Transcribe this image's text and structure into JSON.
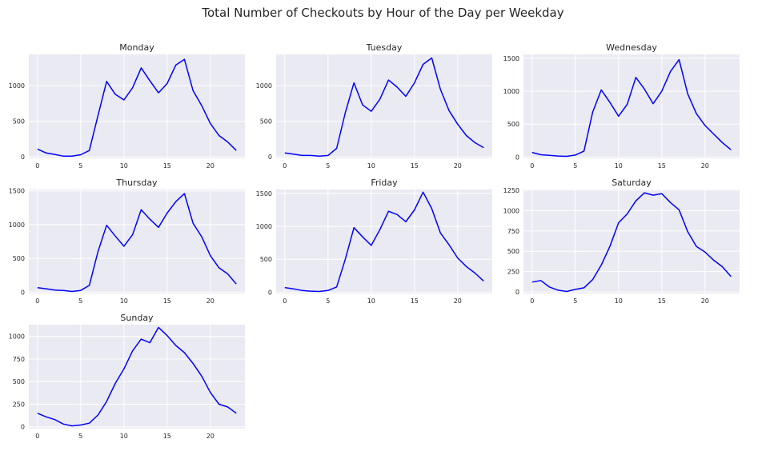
{
  "title": "Total Number of Checkouts by Hour of the Day per Weekday",
  "colors": {
    "line": "#0000ff",
    "panel_bg": "#eaeaf2",
    "grid": "#ffffff"
  },
  "chart_data": [
    {
      "type": "line",
      "title": "Monday",
      "xlabel": "",
      "ylabel": "",
      "grid": true,
      "xlim": [
        -1,
        24
      ],
      "ylim": [
        -20,
        1440
      ],
      "xticks": [
        0,
        5,
        10,
        15,
        20
      ],
      "yticks": [
        0,
        500,
        1000
      ],
      "x": [
        0,
        1,
        2,
        3,
        4,
        5,
        6,
        7,
        8,
        9,
        10,
        11,
        12,
        13,
        14,
        15,
        16,
        17,
        18,
        19,
        20,
        21,
        22,
        23
      ],
      "values": [
        110,
        55,
        35,
        10,
        10,
        30,
        90,
        580,
        1060,
        880,
        800,
        970,
        1250,
        1070,
        900,
        1030,
        1290,
        1370,
        930,
        720,
        470,
        300,
        210,
        90
      ]
    },
    {
      "type": "line",
      "title": "Tuesday",
      "xlabel": "",
      "ylabel": "",
      "grid": true,
      "xlim": [
        -1,
        24
      ],
      "ylim": [
        -20,
        1440
      ],
      "xticks": [
        0,
        5,
        10,
        15,
        20
      ],
      "yticks": [
        0,
        500,
        1000
      ],
      "x": [
        0,
        1,
        2,
        3,
        4,
        5,
        6,
        7,
        8,
        9,
        10,
        11,
        12,
        13,
        14,
        15,
        16,
        17,
        18,
        19,
        20,
        21,
        22,
        23
      ],
      "values": [
        55,
        40,
        20,
        20,
        10,
        20,
        120,
        620,
        1040,
        730,
        640,
        810,
        1080,
        980,
        850,
        1040,
        1300,
        1390,
        950,
        650,
        460,
        300,
        200,
        130
      ]
    },
    {
      "type": "line",
      "title": "Wednesday",
      "xlabel": "",
      "ylabel": "",
      "grid": true,
      "xlim": [
        -1,
        24
      ],
      "ylim": [
        -20,
        1560
      ],
      "xticks": [
        0,
        5,
        10,
        15,
        20
      ],
      "yticks": [
        0,
        500,
        1000,
        1500
      ],
      "x": [
        0,
        1,
        2,
        3,
        4,
        5,
        6,
        7,
        8,
        9,
        10,
        11,
        12,
        13,
        14,
        15,
        16,
        17,
        18,
        19,
        20,
        21,
        22,
        23
      ],
      "values": [
        70,
        35,
        25,
        15,
        10,
        30,
        90,
        680,
        1020,
        830,
        620,
        800,
        1210,
        1030,
        810,
        1000,
        1300,
        1480,
        960,
        660,
        480,
        350,
        220,
        110
      ]
    },
    {
      "type": "line",
      "title": "Thursday",
      "xlabel": "",
      "ylabel": "",
      "grid": true,
      "xlim": [
        -1,
        24
      ],
      "ylim": [
        -20,
        1520
      ],
      "xticks": [
        0,
        5,
        10,
        15,
        20
      ],
      "yticks": [
        0,
        500,
        1000,
        1500
      ],
      "x": [
        0,
        1,
        2,
        3,
        4,
        5,
        6,
        7,
        8,
        9,
        10,
        11,
        12,
        13,
        14,
        15,
        16,
        17,
        18,
        19,
        20,
        21,
        22,
        23
      ],
      "values": [
        65,
        50,
        30,
        25,
        10,
        25,
        100,
        600,
        990,
        830,
        680,
        850,
        1220,
        1080,
        960,
        1170,
        1340,
        1460,
        1020,
        820,
        540,
        360,
        270,
        120
      ]
    },
    {
      "type": "line",
      "title": "Friday",
      "xlabel": "",
      "ylabel": "",
      "grid": true,
      "xlim": [
        -1,
        24
      ],
      "ylim": [
        -20,
        1560
      ],
      "xticks": [
        0,
        5,
        10,
        15,
        20
      ],
      "yticks": [
        0,
        500,
        1000,
        1500
      ],
      "x": [
        0,
        1,
        2,
        3,
        4,
        5,
        6,
        7,
        8,
        9,
        10,
        11,
        12,
        13,
        14,
        15,
        16,
        17,
        18,
        19,
        20,
        21,
        22,
        23
      ],
      "values": [
        70,
        50,
        25,
        15,
        10,
        25,
        80,
        500,
        980,
        840,
        710,
        950,
        1230,
        1180,
        1070,
        1250,
        1520,
        1270,
        900,
        720,
        520,
        390,
        290,
        170
      ]
    },
    {
      "type": "line",
      "title": "Saturday",
      "xlabel": "",
      "ylabel": "",
      "grid": true,
      "xlim": [
        -1,
        24
      ],
      "ylim": [
        -20,
        1260
      ],
      "xticks": [
        0,
        5,
        10,
        15,
        20
      ],
      "yticks": [
        0,
        250,
        500,
        750,
        1000,
        1250
      ],
      "x": [
        0,
        1,
        2,
        3,
        4,
        5,
        6,
        7,
        8,
        9,
        10,
        11,
        12,
        13,
        14,
        15,
        16,
        17,
        18,
        19,
        20,
        21,
        22,
        23
      ],
      "values": [
        120,
        140,
        60,
        20,
        5,
        30,
        50,
        150,
        330,
        560,
        850,
        960,
        1120,
        1220,
        1190,
        1210,
        1100,
        1010,
        740,
        560,
        490,
        390,
        310,
        190
      ]
    },
    {
      "type": "line",
      "title": "Sunday",
      "xlabel": "",
      "ylabel": "",
      "grid": true,
      "xlim": [
        -1,
        24
      ],
      "ylim": [
        -20,
        1130
      ],
      "xticks": [
        0,
        5,
        10,
        15,
        20
      ],
      "yticks": [
        0,
        250,
        500,
        750,
        1000
      ],
      "x": [
        0,
        1,
        2,
        3,
        4,
        5,
        6,
        7,
        8,
        9,
        10,
        11,
        12,
        13,
        14,
        15,
        16,
        17,
        18,
        19,
        20,
        21,
        22,
        23
      ],
      "values": [
        150,
        110,
        80,
        30,
        10,
        20,
        40,
        130,
        280,
        480,
        640,
        840,
        970,
        930,
        1100,
        1010,
        900,
        820,
        700,
        560,
        380,
        250,
        220,
        150
      ]
    }
  ]
}
